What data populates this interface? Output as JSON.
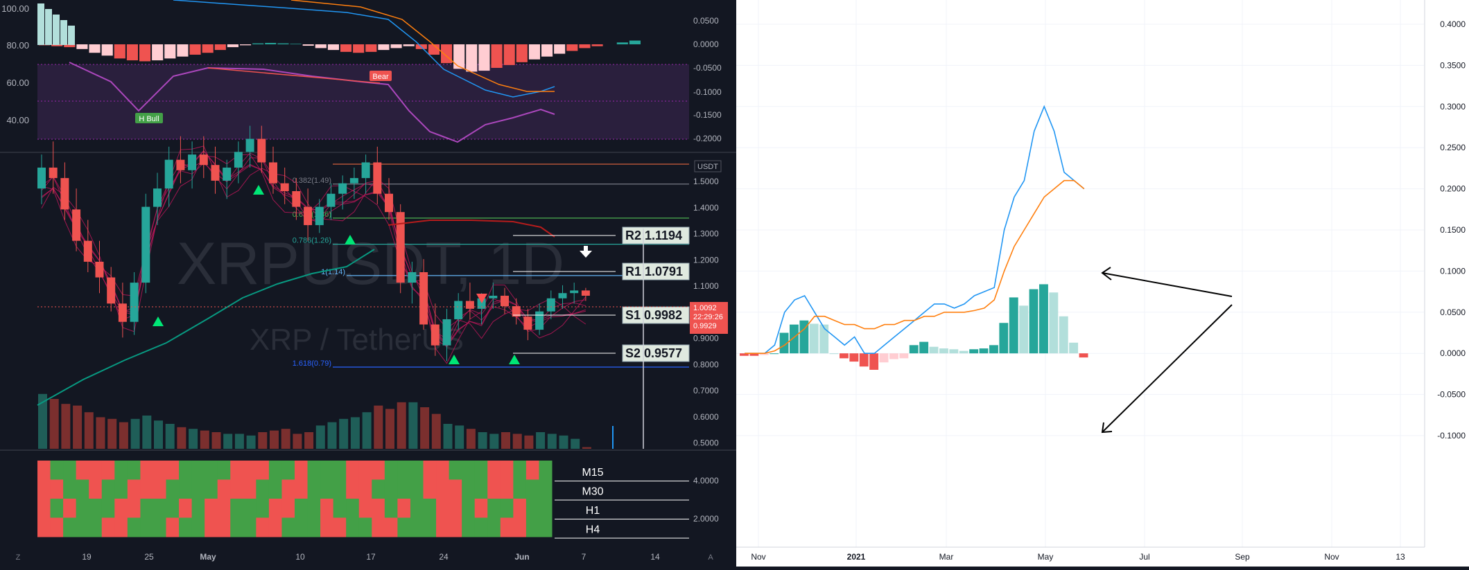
{
  "chart_data": [
    {
      "type": "line",
      "subtitle_panel": "oscillator",
      "left_axis_ticks": [
        "100.00",
        "80.00",
        "60.00",
        "40.00"
      ],
      "right_axis_ticks": [
        "0.0500",
        "0.0000",
        "-0.0500",
        "-0.1000",
        "-0.1500",
        "-0.2000"
      ],
      "annotations": [
        "Bear",
        "H Bull"
      ]
    },
    {
      "type": "bar",
      "symbol": "XRPUSDT, 1D",
      "description": "XRP / TetherUS",
      "currency": "USDT",
      "price_axis": [
        "1.5000",
        "1.4000",
        "1.3000",
        "1.2000",
        "1.1000",
        "1.0000",
        "0.9000",
        "0.8000",
        "0.7000",
        "0.6000",
        "0.5000"
      ],
      "time_axis": [
        "19",
        "25",
        "May",
        "10",
        "17",
        "24",
        "Jun",
        "7",
        "14"
      ],
      "fib_labels": [
        "0.382(1.49)",
        "0.618(1.36)",
        "0.786(1.26)",
        "1(1.14)",
        "1.618(0.79)"
      ],
      "pivots": [
        {
          "label": "R2 1.1194"
        },
        {
          "label": "R1 1.0791"
        },
        {
          "label": "S1 0.9982"
        },
        {
          "label": "S2 0.9577"
        }
      ],
      "price_tags": [
        "1.0092",
        "22:29:26",
        "0.9929"
      ],
      "candles": [
        [
          1.42,
          1.55,
          1.36,
          1.5
        ],
        [
          1.5,
          1.6,
          1.4,
          1.46
        ],
        [
          1.46,
          1.52,
          1.3,
          1.34
        ],
        [
          1.34,
          1.42,
          1.18,
          1.22
        ],
        [
          1.22,
          1.3,
          1.1,
          1.14
        ],
        [
          1.14,
          1.22,
          1.02,
          1.08
        ],
        [
          1.08,
          1.12,
          0.95,
          0.98
        ],
        [
          0.98,
          1.06,
          0.85,
          0.91
        ],
        [
          0.91,
          1.1,
          0.86,
          1.06
        ],
        [
          1.06,
          1.4,
          1.02,
          1.35
        ],
        [
          1.35,
          1.48,
          1.28,
          1.42
        ],
        [
          1.42,
          1.58,
          1.35,
          1.53
        ],
        [
          1.53,
          1.62,
          1.44,
          1.49
        ],
        [
          1.49,
          1.6,
          1.42,
          1.55
        ],
        [
          1.55,
          1.62,
          1.46,
          1.51
        ],
        [
          1.51,
          1.58,
          1.4,
          1.45
        ],
        [
          1.45,
          1.53,
          1.38,
          1.5
        ],
        [
          1.5,
          1.6,
          1.44,
          1.56
        ],
        [
          1.56,
          1.66,
          1.5,
          1.61
        ],
        [
          1.61,
          1.66,
          1.48,
          1.52
        ],
        [
          1.52,
          1.58,
          1.4,
          1.44
        ],
        [
          1.44,
          1.5,
          1.36,
          1.41
        ],
        [
          1.41,
          1.46,
          1.3,
          1.35
        ],
        [
          1.35,
          1.42,
          1.22,
          1.28
        ],
        [
          1.28,
          1.38,
          1.25,
          1.35
        ],
        [
          1.35,
          1.44,
          1.3,
          1.4
        ],
        [
          1.4,
          1.47,
          1.34,
          1.44
        ],
        [
          1.44,
          1.5,
          1.38,
          1.46
        ],
        [
          1.46,
          1.55,
          1.4,
          1.52
        ],
        [
          1.52,
          1.58,
          1.36,
          1.4
        ],
        [
          1.4,
          1.46,
          1.3,
          1.33
        ],
        [
          1.33,
          1.36,
          1.02,
          1.06
        ],
        [
          1.06,
          1.14,
          0.98,
          1.1
        ],
        [
          1.1,
          1.15,
          0.88,
          0.9
        ],
        [
          0.9,
          0.98,
          0.78,
          0.82
        ],
        [
          0.82,
          0.96,
          0.76,
          0.92
        ],
        [
          0.92,
          1.02,
          0.88,
          0.99
        ],
        [
          0.99,
          1.06,
          0.92,
          0.96
        ],
        [
          0.96,
          1.02,
          0.9,
          1.0
        ],
        [
          1.0,
          1.06,
          0.96,
          1.01
        ],
        [
          1.01,
          1.04,
          0.94,
          0.97
        ],
        [
          0.97,
          1.0,
          0.9,
          0.93
        ],
        [
          0.93,
          0.96,
          0.84,
          0.88
        ],
        [
          0.88,
          0.98,
          0.86,
          0.95
        ],
        [
          0.95,
          1.03,
          0.92,
          1.0
        ],
        [
          1.0,
          1.05,
          0.96,
          1.02
        ],
        [
          1.02,
          1.06,
          0.98,
          1.03
        ],
        [
          1.03,
          1.04,
          0.99,
          1.01
        ]
      ],
      "volume": [
        0.33,
        0.3,
        0.27,
        0.26,
        0.22,
        0.19,
        0.18,
        0.16,
        0.18,
        0.2,
        0.17,
        0.15,
        0.13,
        0.12,
        0.11,
        0.1,
        0.09,
        0.09,
        0.08,
        0.1,
        0.11,
        0.12,
        0.09,
        0.1,
        0.14,
        0.16,
        0.18,
        0.19,
        0.22,
        0.26,
        0.24,
        0.28,
        0.28,
        0.25,
        0.21,
        0.15,
        0.14,
        0.12,
        0.1,
        0.09,
        0.1,
        0.09,
        0.08,
        0.1,
        0.09,
        0.08,
        0.06,
        0.01
      ],
      "ema_label": "0.786(1.26)"
    },
    {
      "type": "heatmap",
      "rows": [
        "M15",
        "M30",
        "H1",
        "H4"
      ],
      "axis_ticks": [
        "4.0000",
        "2.0000"
      ],
      "colors": {
        "up": "#43a047",
        "down": "#ef5350"
      }
    },
    {
      "type": "bar",
      "x_ticks": [
        "Nov",
        "2021",
        "Mar",
        "May",
        "Jul",
        "Sep",
        "Nov",
        "13"
      ],
      "y_ticks": [
        "0.4000",
        "0.3500",
        "0.3000",
        "0.2500",
        "0.2000",
        "0.1500",
        "0.1000",
        "0.0500",
        "0.0000",
        "-0.0500",
        "-0.1000"
      ],
      "ylim": [
        -0.1,
        0.4
      ],
      "histogram": [
        -0.003,
        -0.003,
        -0.002,
        0.0,
        0.025,
        0.035,
        0.04,
        0.036,
        0.035,
        0.0,
        -0.006,
        -0.01,
        -0.016,
        -0.02,
        -0.011,
        -0.007,
        -0.006,
        0.01,
        0.014,
        0.008,
        0.006,
        0.005,
        0.003,
        0.005,
        0.006,
        0.01,
        0.037,
        0.068,
        0.058,
        0.078,
        0.084,
        0.074,
        0.045,
        0.013,
        -0.005
      ],
      "series": [
        {
          "name": "",
          "color": "#2196f3",
          "values": [
            0.0,
            0.0,
            0.0,
            0.01,
            0.05,
            0.065,
            0.07,
            0.05,
            0.03,
            0.02,
            0.01,
            0.02,
            0.0,
            0.0,
            0.01,
            0.02,
            0.03,
            0.04,
            0.05,
            0.06,
            0.06,
            0.055,
            0.06,
            0.07,
            0.075,
            0.08,
            0.15,
            0.19,
            0.21,
            0.27,
            0.3,
            0.27,
            0.22,
            0.21,
            0.2
          ]
        },
        {
          "name": "",
          "color": "#ff7f0e",
          "values": [
            0.0,
            0.0,
            0.0,
            0.003,
            0.01,
            0.02,
            0.03,
            0.045,
            0.045,
            0.04,
            0.035,
            0.035,
            0.03,
            0.03,
            0.035,
            0.035,
            0.04,
            0.04,
            0.045,
            0.045,
            0.05,
            0.05,
            0.05,
            0.052,
            0.055,
            0.065,
            0.1,
            0.13,
            0.15,
            0.17,
            0.19,
            0.2,
            0.21,
            0.21,
            0.2
          ]
        }
      ]
    }
  ],
  "bottom_bar": {
    "left_button": "Z",
    "right_button": "A"
  }
}
